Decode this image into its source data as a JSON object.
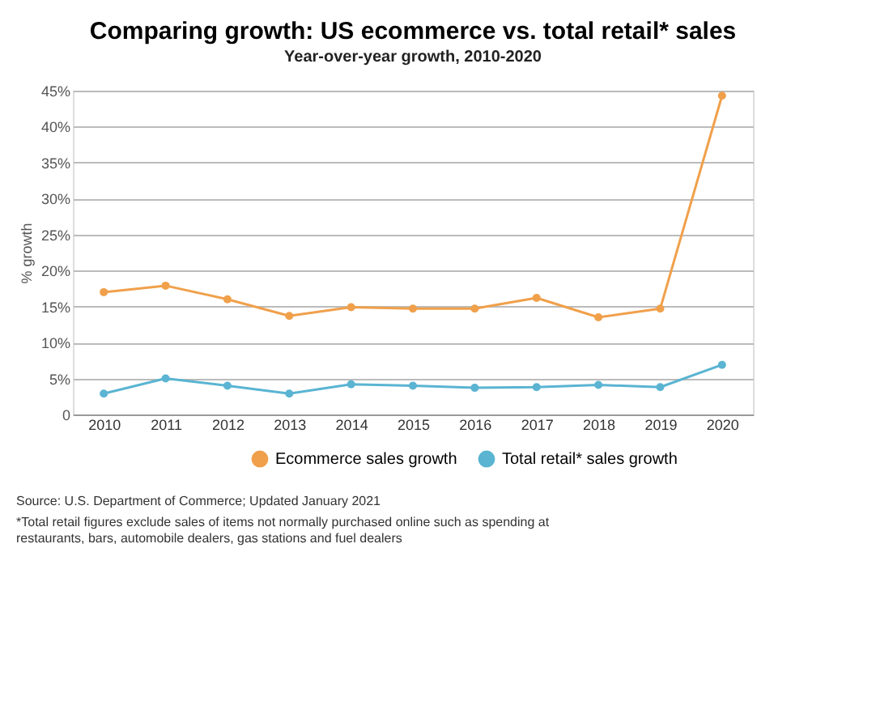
{
  "chart_data": {
    "type": "line",
    "title": "Comparing growth: US ecommerce vs. total retail* sales",
    "subtitle": "Year-over-year growth, 2010-2020",
    "ylabel": "% growth",
    "categories": [
      "2010",
      "2011",
      "2012",
      "2013",
      "2014",
      "2015",
      "2016",
      "2017",
      "2018",
      "2019",
      "2020"
    ],
    "series": [
      {
        "name": "Ecommerce sales growth",
        "color": "#f0a04b",
        "values": [
          17.0,
          17.9,
          16.0,
          13.7,
          14.9,
          14.7,
          14.7,
          16.2,
          13.5,
          14.7,
          44.3
        ]
      },
      {
        "name": "Total retail* sales growth",
        "color": "#5ab4d2",
        "values": [
          2.9,
          5.0,
          4.0,
          2.9,
          4.2,
          4.0,
          3.7,
          3.8,
          4.1,
          3.8,
          6.9
        ]
      }
    ],
    "ylim": [
      0,
      45
    ],
    "yticks": [
      {
        "value": 0,
        "label": "0"
      },
      {
        "value": 5,
        "label": "5%"
      },
      {
        "value": 10,
        "label": "10%"
      },
      {
        "value": 15,
        "label": "15%"
      },
      {
        "value": 20,
        "label": "20%"
      },
      {
        "value": 25,
        "label": "25%"
      },
      {
        "value": 30,
        "label": "30%"
      },
      {
        "value": 35,
        "label": "35%"
      },
      {
        "value": 40,
        "label": "40%"
      },
      {
        "value": 45,
        "label": "45%"
      }
    ],
    "grid": "y",
    "legend": "bottom",
    "marker": "circle",
    "line_style": "solid",
    "annotations": [
      "Source: U.S. Department of Commerce; Updated January 2021",
      "*Total retail figures exclude sales of items not normally purchased online such as spending at restaurants, bars, automobile dealers, gas stations and fuel dealers"
    ]
  }
}
